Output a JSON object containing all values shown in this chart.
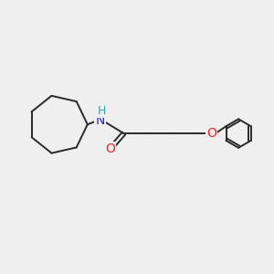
{
  "background_color": "#efefef",
  "bond_color": "#2a2a2a",
  "N_color": "#2020ff",
  "H_color": "#40a0a0",
  "O_color": "#ff2020",
  "bond_lw": 1.4,
  "font_size_N": 10,
  "font_size_H": 9,
  "font_size_O": 10,
  "fig_width": 3.0,
  "fig_height": 3.0,
  "xlim": [
    0,
    7.5
  ],
  "ylim": [
    0,
    6.0
  ]
}
